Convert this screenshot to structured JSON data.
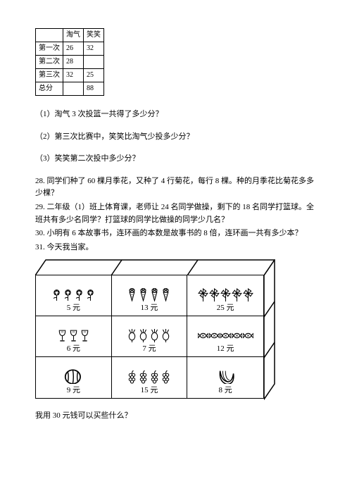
{
  "scoreTable": {
    "headers": [
      "",
      "淘气",
      "笑笑"
    ],
    "rows": [
      [
        "第一次",
        "26",
        "32"
      ],
      [
        "第二次",
        "28",
        ""
      ],
      [
        "第三次",
        "32",
        "25"
      ],
      [
        "总分",
        "",
        "88"
      ]
    ]
  },
  "questions": {
    "q1": "（1）淘气 3 次投篮一共得了多少分？",
    "q2": "（2）第三次比赛中，笑笑比淘气少投多少分？",
    "q3": "（3）笑笑第二次投中多少分？"
  },
  "problems": {
    "p28": "28. 同学们种了 60 棵月季花，又种了 4 行菊花，每行 8 棵。种的月季花比菊花多多少棵？",
    "p29a": "29. 二年级（1）班上体育课，老师让 24 名同学做操，剩下的 18 名同学打篮球。全班共有多少名同学？打篮球的同学比做操的同学少几名？",
    "p30": "30. 小明有 6 本故事书，连环画的本数是故事书的 8 倍，连环画一共有多少本？",
    "p31": "31. 今天我当家。"
  },
  "grid": {
    "currency": "元",
    "cells": [
      {
        "price": 5,
        "icon": "flower",
        "count": 4
      },
      {
        "price": 13,
        "icon": "icecream",
        "count": 4
      },
      {
        "price": 25,
        "icon": "pinwheel",
        "count": 5
      },
      {
        "price": 6,
        "icon": "goblet",
        "count": 3
      },
      {
        "price": 7,
        "icon": "radish",
        "count": 4
      },
      {
        "price": 12,
        "icon": "candy",
        "count": 5
      },
      {
        "price": 9,
        "icon": "watermelon",
        "count": 1
      },
      {
        "price": 15,
        "icon": "grapes",
        "count": 4
      },
      {
        "price": 8,
        "icon": "banana",
        "count": 1
      }
    ]
  },
  "finalQ": "我用 30 元钱可以买些什么？",
  "style": {
    "border_color": "#000000",
    "bg": "#ffffff",
    "font_size": 11
  }
}
